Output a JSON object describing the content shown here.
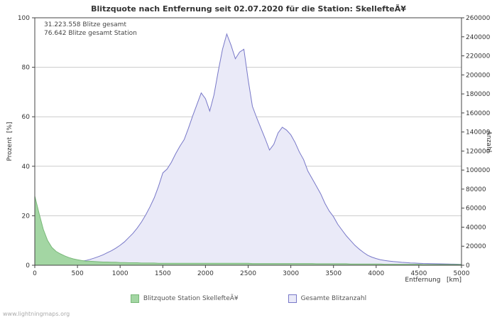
{
  "page": {
    "watermark": "www.lightningmaps.org"
  },
  "chart_data": {
    "type": "area",
    "title": "Blitzquote nach Entfernung seit 02.07.2020 für die Station: SkellefteÃ¥",
    "annotations": [
      "31.223.558 Blitze gesamt",
      "76.642 Blitze gesamt Station"
    ],
    "axes": {
      "left": {
        "label": "Prozent  [%]",
        "range": [
          0,
          100
        ],
        "ticks": [
          0,
          20,
          40,
          60,
          80,
          100
        ]
      },
      "right": {
        "label": "Anzahl",
        "range": [
          0,
          260000
        ],
        "ticks": [
          0,
          20000,
          40000,
          60000,
          80000,
          100000,
          120000,
          140000,
          160000,
          180000,
          200000,
          220000,
          240000,
          260000
        ]
      },
      "x": {
        "label": "Entfernung   [km]",
        "range": [
          0,
          5000
        ],
        "ticks": [
          0,
          500,
          1000,
          1500,
          2000,
          2500,
          3000,
          3500,
          4000,
          4500,
          5000
        ]
      }
    },
    "grid": true,
    "legend_position": "bottom",
    "colors": {
      "grid": "#cccccc",
      "axis": "#444444",
      "text": "#333333"
    },
    "legend": [
      {
        "label": "Blitzquote Station SkellefteÃ¥"
      },
      {
        "label": "Gesamte Blitzanzahl"
      }
    ],
    "x": [
      0,
      50,
      100,
      150,
      200,
      250,
      300,
      350,
      400,
      450,
      500,
      550,
      600,
      650,
      700,
      750,
      800,
      850,
      900,
      950,
      1000,
      1050,
      1100,
      1150,
      1200,
      1250,
      1300,
      1350,
      1400,
      1450,
      1500,
      1550,
      1600,
      1650,
      1700,
      1750,
      1800,
      1850,
      1900,
      1950,
      2000,
      2050,
      2100,
      2150,
      2200,
      2250,
      2300,
      2350,
      2400,
      2450,
      2500,
      2550,
      2600,
      2650,
      2700,
      2750,
      2800,
      2850,
      2900,
      2950,
      3000,
      3050,
      3100,
      3150,
      3200,
      3250,
      3300,
      3350,
      3400,
      3450,
      3500,
      3550,
      3600,
      3650,
      3700,
      3750,
      3800,
      3850,
      3900,
      3950,
      4000,
      4050,
      4100,
      4150,
      4200,
      4250,
      4300,
      4350,
      4400,
      4450,
      4500,
      4550,
      4600,
      4650,
      4700,
      4750,
      4800,
      4850,
      4900,
      4950,
      5000
    ],
    "series": [
      {
        "name": "Blitzquote Station SkellefteÃ¥",
        "axis": "left",
        "unit": "%",
        "fill": "#a3d6a3",
        "stroke": "#79b879",
        "values": [
          28,
          21,
          14.5,
          10,
          7.2,
          5.6,
          4.6,
          3.8,
          3.1,
          2.6,
          2.2,
          1.9,
          1.7,
          1.6,
          1.5,
          1.4,
          1.3,
          1.3,
          1.2,
          1.2,
          1.1,
          1.1,
          1.0,
          1.0,
          1.0,
          0.9,
          0.9,
          0.9,
          0.9,
          0.8,
          0.8,
          0.8,
          0.8,
          0.8,
          0.8,
          0.8,
          0.8,
          0.8,
          0.8,
          0.8,
          0.8,
          0.8,
          0.8,
          0.8,
          0.8,
          0.8,
          0.8,
          0.8,
          0.8,
          0.8,
          0.8,
          0.7,
          0.7,
          0.7,
          0.7,
          0.7,
          0.7,
          0.7,
          0.7,
          0.7,
          0.7,
          0.7,
          0.7,
          0.7,
          0.7,
          0.7,
          0.6,
          0.6,
          0.6,
          0.6,
          0.6,
          0.6,
          0.6,
          0.6,
          0.5,
          0.5,
          0.5,
          0.5,
          0.5,
          0.5,
          0.5,
          0.5,
          0.4,
          0.4,
          0.4,
          0.4,
          0.4,
          0.4,
          0.4,
          0.4,
          0.4,
          0.3,
          0.3,
          0.3,
          0.3,
          0.3,
          0.3,
          0.3,
          0.3,
          0.3,
          0.3
        ]
      },
      {
        "name": "Gesamte Blitzanzahl",
        "axis": "right",
        "unit": "count",
        "fill": "#eaeaf8",
        "stroke": "#7878c8",
        "values": [
          400,
          700,
          900,
          1100,
          1400,
          1700,
          2000,
          2200,
          2600,
          3000,
          3400,
          4200,
          5000,
          6200,
          7600,
          9200,
          11000,
          13200,
          15400,
          18000,
          21000,
          24500,
          29000,
          33500,
          39000,
          45500,
          53000,
          61500,
          71000,
          83000,
          97000,
          101000,
          108000,
          117000,
          125000,
          132000,
          144000,
          157000,
          169000,
          181000,
          175000,
          162000,
          179000,
          204000,
          227000,
          243000,
          231000,
          217000,
          224000,
          227000,
          195000,
          167000,
          155000,
          144000,
          133000,
          121000,
          127000,
          139000,
          145000,
          142000,
          137000,
          129000,
          119000,
          111000,
          99000,
          91000,
          83000,
          75000,
          65000,
          57000,
          51000,
          43000,
          37000,
          31000,
          26000,
          21000,
          17000,
          13500,
          10500,
          8500,
          7000,
          5800,
          5000,
          4400,
          3900,
          3500,
          3100,
          2800,
          2500,
          2300,
          2100,
          1900,
          1800,
          1700,
          1600,
          1500,
          1400,
          1300,
          1200,
          1100,
          1000
        ]
      }
    ]
  }
}
